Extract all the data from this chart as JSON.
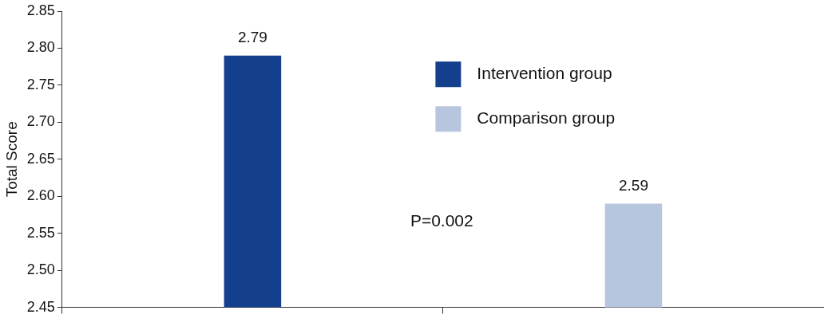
{
  "chart_data": {
    "type": "bar",
    "ylabel": "Total Score",
    "categories": [
      null,
      null
    ],
    "series": [
      {
        "name": "Intervention group",
        "color": "#143f8c",
        "values": [
          2.79,
          null
        ]
      },
      {
        "name": "Comparison group",
        "color": "#b8c5df",
        "values": [
          null,
          2.59
        ]
      }
    ],
    "ylim": [
      2.45,
      2.85
    ],
    "yticks": [
      {
        "value": 2.45,
        "label": "2.45"
      },
      {
        "value": 2.5,
        "label": "2.50"
      },
      {
        "value": 2.55,
        "label": "2.55"
      },
      {
        "value": 2.6,
        "label": "2.60"
      },
      {
        "value": 2.65,
        "label": "2.65"
      },
      {
        "value": 2.7,
        "label": "2.70"
      },
      {
        "value": 2.75,
        "label": "2.75"
      },
      {
        "value": 2.8,
        "label": "2.80"
      },
      {
        "value": 2.85,
        "label": "2.85"
      }
    ],
    "grid": false,
    "legend": "top right",
    "data_labels": true,
    "annotations": [
      "P=0.002"
    ]
  }
}
